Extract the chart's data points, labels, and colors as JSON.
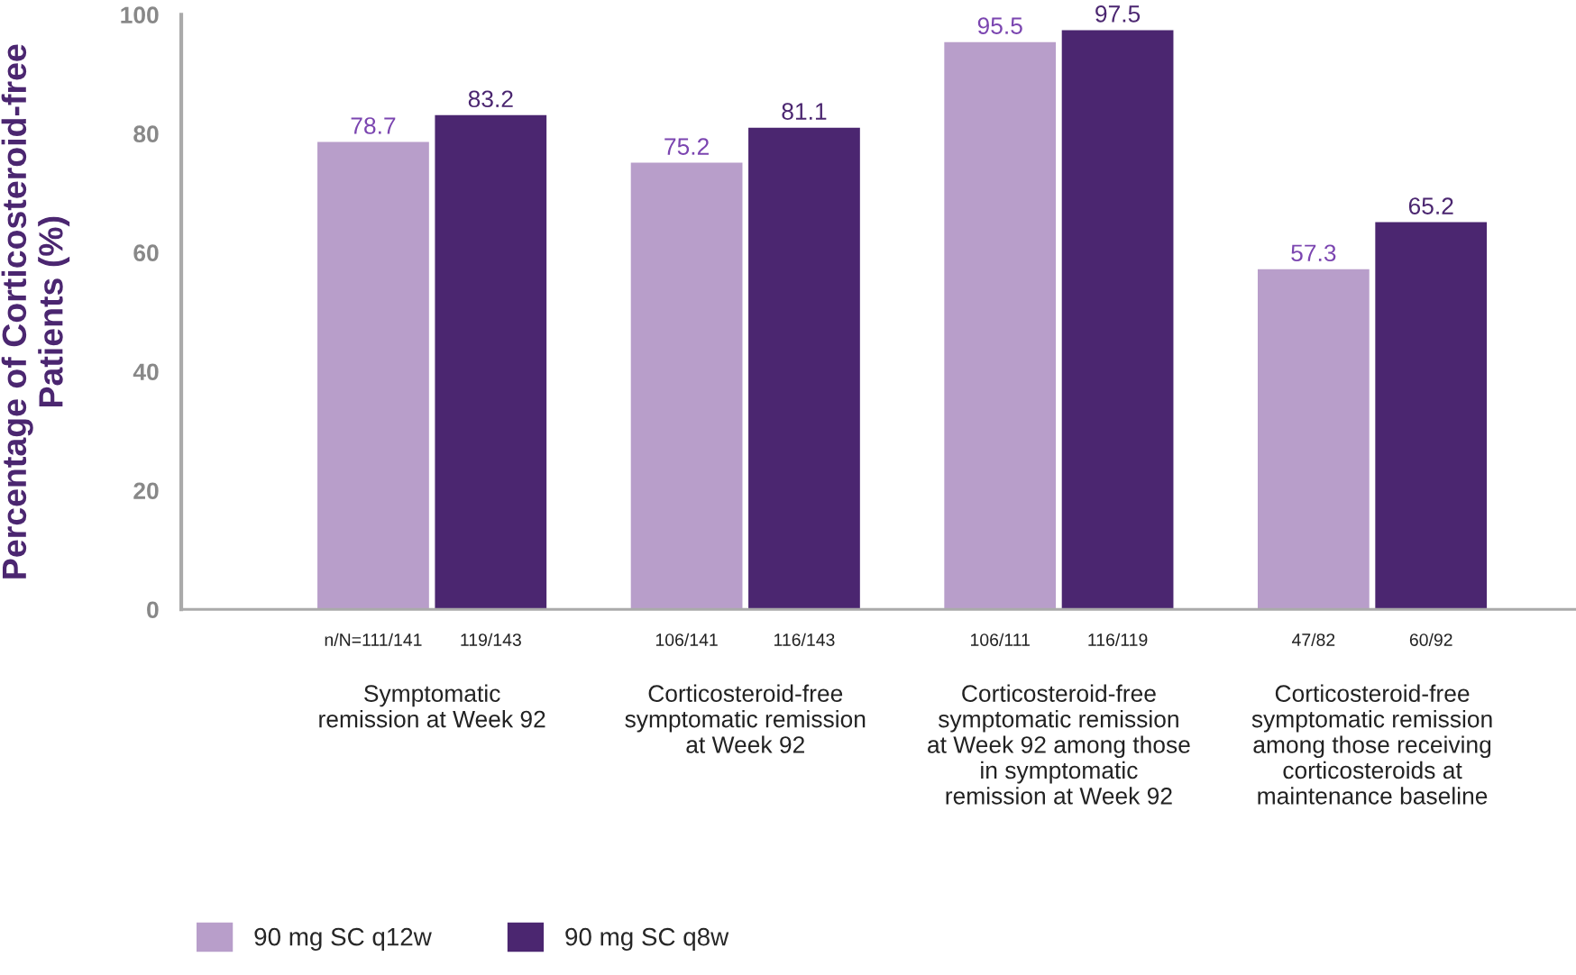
{
  "chart_data": {
    "type": "bar",
    "ylabel": "Percentage of Corticosteroid-free\nPatients (%)",
    "categories": [
      "Symptomatic\nremission at Week 92",
      "Corticosteroid-free\nsymptomatic remission\nat Week 92",
      "Corticosteroid-free\nsymptomatic remission\nat Week 92 among those\nin symptomatic\nremission at Week 92",
      "Corticosteroid-free\nsymptomatic remission\namong those receiving\ncorticosteroids at\nmaintenance baseline"
    ],
    "series": [
      {
        "name": "90 mg SC q12w",
        "color": "#b89eca",
        "values": [
          78.7,
          75.2,
          95.5,
          57.3
        ]
      },
      {
        "name": "90 mg SC q8w",
        "color": "#4b2670",
        "values": [
          83.2,
          81.1,
          97.5,
          65.2
        ]
      }
    ],
    "ylim": [
      0,
      100
    ],
    "yticks": [
      0,
      20,
      40,
      60,
      80,
      100
    ],
    "data_labels": true,
    "grid": false,
    "legend": "bottom",
    "annotations": [
      "n/N=111/141",
      "119/143",
      "106/141",
      "116/143",
      "106/111",
      "116/119",
      "47/82",
      "60/92"
    ]
  }
}
